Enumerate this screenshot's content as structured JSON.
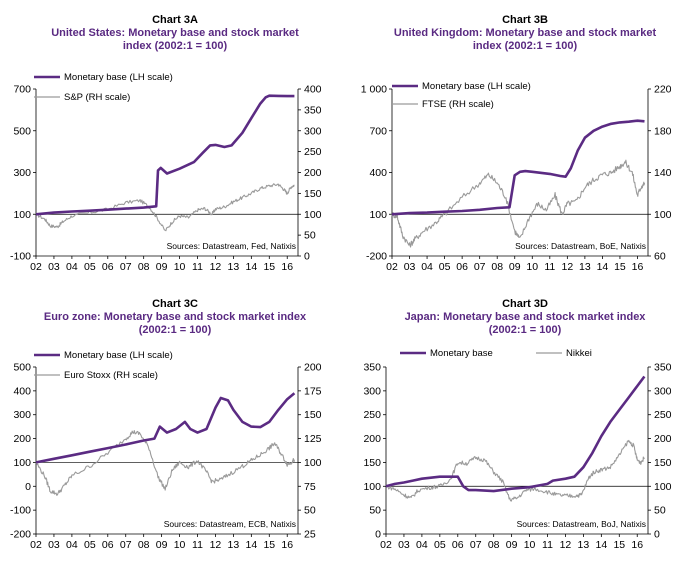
{
  "colors": {
    "monetary": "#5b2b83",
    "index": "#9a9a9a",
    "axis": "#000000",
    "title": "#5a2a82"
  },
  "chart_data": [
    {
      "type": "line",
      "chart_label": "Chart 3A",
      "title": "United States: Monetary base and stock market index (2002:1 = 100)",
      "title_lines": [
        "United States: Monetary base and stock market",
        "index (2002:1 = 100)"
      ],
      "source": "Sources: Datastream, Fed, Natixis",
      "x_ticks": [
        "02",
        "03",
        "04",
        "05",
        "06",
        "07",
        "08",
        "09",
        "10",
        "11",
        "12",
        "13",
        "14",
        "15",
        "16"
      ],
      "xlim": [
        2002,
        2016.6
      ],
      "left_axis": {
        "ylim": [
          -100,
          700
        ],
        "ticks": [
          "-100",
          "100",
          "300",
          "500",
          "700"
        ],
        "tick_values": [
          -100,
          100,
          300,
          500,
          700
        ]
      },
      "right_axis": {
        "ylim": [
          0,
          400
        ],
        "ticks": [
          "0",
          "50",
          "100",
          "150",
          "200",
          "250",
          "300",
          "350",
          "400"
        ],
        "tick_values": [
          0,
          50,
          100,
          150,
          200,
          250,
          300,
          350,
          400
        ]
      },
      "reference_line": 100,
      "legend_position": "top-left",
      "series": [
        {
          "name": "Monetary base (LH scale)",
          "axis": "left",
          "style": "thick",
          "x": [
            2002,
            2003,
            2004,
            2005,
            2006,
            2007,
            2008,
            2008.7,
            2008.8,
            2008.95,
            2009.3,
            2010,
            2010.8,
            2011.3,
            2011.7,
            2012,
            2012.5,
            2012.9,
            2013.5,
            2014,
            2014.5,
            2014.8,
            2015,
            2015.5,
            2016,
            2016.4
          ],
          "y": [
            100,
            108,
            113,
            117,
            122,
            127,
            132,
            138,
            310,
            322,
            295,
            318,
            350,
            395,
            430,
            432,
            422,
            430,
            490,
            560,
            630,
            660,
            668,
            667,
            666,
            666
          ]
        },
        {
          "name": "S&P (RH scale)",
          "axis": "right",
          "style": "thin",
          "x": [
            2002,
            2002.5,
            2002.8,
            2003.2,
            2003.5,
            2004,
            2005,
            2006,
            2007,
            2007.8,
            2008.3,
            2008.7,
            2009.2,
            2009.6,
            2010,
            2010.5,
            2011,
            2011.4,
            2011.8,
            2012,
            2012.5,
            2013,
            2013.5,
            2014,
            2014.5,
            2015,
            2015.5,
            2015.8,
            2016,
            2016.2,
            2016.4
          ],
          "y": [
            100,
            88,
            72,
            70,
            82,
            96,
            104,
            112,
            128,
            133,
            118,
            95,
            60,
            82,
            96,
            92,
            110,
            114,
            100,
            112,
            118,
            130,
            140,
            150,
            162,
            168,
            172,
            160,
            150,
            165,
            170
          ]
        }
      ]
    },
    {
      "type": "line",
      "chart_label": "Chart 3B",
      "title": "United Kingdom: Monetary base and stock market index (2002:1 = 100)",
      "title_lines": [
        "United Kingdom: Monetary base and stock market",
        "index (2002:1 = 100)"
      ],
      "source": "Sources: Datastream, BoE, Natixis",
      "x_ticks": [
        "02",
        "03",
        "04",
        "05",
        "06",
        "07",
        "08",
        "09",
        "10",
        "11",
        "12",
        "13",
        "14",
        "15",
        "16"
      ],
      "xlim": [
        2002,
        2016.6
      ],
      "left_axis": {
        "ylim": [
          -200,
          1000
        ],
        "ticks": [
          "-200",
          "100",
          "400",
          "700",
          "1 000"
        ],
        "tick_values": [
          -200,
          100,
          400,
          700,
          1000
        ]
      },
      "right_axis": {
        "ylim": [
          60,
          220
        ],
        "ticks": [
          "60",
          "100",
          "140",
          "180",
          "220"
        ],
        "tick_values": [
          60,
          100,
          140,
          180,
          220
        ]
      },
      "reference_line": 100,
      "legend_position": "top-left",
      "series": [
        {
          "name": "Monetary base (LH scale)",
          "axis": "left",
          "style": "thick",
          "x": [
            2002,
            2003,
            2004,
            2005,
            2006,
            2007,
            2008,
            2008.7,
            2009,
            2009.3,
            2009.6,
            2010,
            2011,
            2011.6,
            2011.9,
            2012.2,
            2012.6,
            2013,
            2013.5,
            2014,
            2014.5,
            2015,
            2015.5,
            2016,
            2016.4
          ],
          "y": [
            100,
            108,
            112,
            118,
            123,
            132,
            145,
            150,
            380,
            405,
            410,
            405,
            390,
            375,
            370,
            430,
            560,
            650,
            700,
            730,
            750,
            760,
            765,
            772,
            768
          ]
        },
        {
          "name": "FTSE (RH scale)",
          "axis": "right",
          "style": "thin",
          "x": [
            2002,
            2002.3,
            2002.6,
            2003,
            2003.3,
            2003.8,
            2004.5,
            2005,
            2006,
            2007,
            2007.5,
            2008,
            2008.5,
            2009,
            2009.3,
            2009.8,
            2010.3,
            2010.8,
            2011.3,
            2011.7,
            2012,
            2012.5,
            2013,
            2013.5,
            2014,
            2014.5,
            2015,
            2015.3,
            2015.7,
            2016,
            2016.2,
            2016.4
          ],
          "y": [
            100,
            98,
            80,
            70,
            76,
            84,
            92,
            100,
            116,
            130,
            138,
            130,
            116,
            84,
            76,
            96,
            110,
            104,
            118,
            100,
            110,
            112,
            126,
            133,
            138,
            140,
            146,
            150,
            140,
            118,
            126,
            130
          ]
        }
      ]
    },
    {
      "type": "line",
      "chart_label": "Chart 3C",
      "title": "Euro zone: Monetary base and stock market index (2002:1 = 100)",
      "title_lines": [
        "Euro zone: Monetary base and stock market index",
        "(2002:1 = 100)"
      ],
      "source": "Sources: Datastream, ECB, Natixis",
      "x_ticks": [
        "02",
        "03",
        "04",
        "05",
        "06",
        "07",
        "08",
        "09",
        "10",
        "11",
        "12",
        "13",
        "14",
        "15",
        "16"
      ],
      "xlim": [
        2002,
        2016.6
      ],
      "left_axis": {
        "ylim": [
          -200,
          500
        ],
        "ticks": [
          "-200",
          "-100",
          "0",
          "100",
          "200",
          "300",
          "400",
          "500"
        ],
        "tick_values": [
          -200,
          -100,
          0,
          100,
          200,
          300,
          400,
          500
        ]
      },
      "right_axis": {
        "ylim": [
          25,
          200
        ],
        "ticks": [
          "25",
          "50",
          "75",
          "100",
          "125",
          "150",
          "175",
          "200"
        ],
        "tick_values": [
          25,
          50,
          75,
          100,
          125,
          150,
          175,
          200
        ]
      },
      "reference_line": 100,
      "legend_position": "top-left",
      "series": [
        {
          "name": "Monetary base (LH scale)",
          "axis": "left",
          "style": "thick",
          "x": [
            2002,
            2003,
            2004,
            2005,
            2006,
            2007,
            2008,
            2008.6,
            2008.9,
            2009.3,
            2009.8,
            2010.3,
            2010.6,
            2011,
            2011.5,
            2012,
            2012.3,
            2012.7,
            2013,
            2013.5,
            2014,
            2014.5,
            2015,
            2015.5,
            2016,
            2016.4
          ],
          "y": [
            100,
            115,
            130,
            145,
            160,
            175,
            192,
            200,
            250,
            225,
            240,
            270,
            240,
            225,
            240,
            330,
            370,
            360,
            320,
            270,
            250,
            248,
            270,
            320,
            365,
            390
          ]
        },
        {
          "name": "Euro Stoxx (RH scale)",
          "axis": "right",
          "style": "thin",
          "x": [
            2002,
            2002.5,
            2002.8,
            2003.2,
            2003.6,
            2004,
            2005,
            2006,
            2007,
            2007.4,
            2007.8,
            2008.3,
            2008.8,
            2009.2,
            2009.6,
            2010,
            2010.5,
            2011,
            2011.5,
            2011.8,
            2012.3,
            2012.8,
            2013.5,
            2014,
            2014.5,
            2015,
            2015.3,
            2015.7,
            2016,
            2016.2,
            2016.4
          ],
          "y": [
            100,
            85,
            70,
            67,
            76,
            86,
            96,
            110,
            125,
            132,
            130,
            115,
            85,
            72,
            92,
            100,
            95,
            102,
            90,
            80,
            82,
            88,
            96,
            102,
            108,
            115,
            120,
            108,
            98,
            100,
            103
          ]
        }
      ]
    },
    {
      "type": "line",
      "chart_label": "Chart 3D",
      "title": "Japan: Monetary base and stock market index (2002:1 = 100)",
      "title_lines": [
        "Japan: Monetary base and stock market index",
        "(2002:1 = 100)"
      ],
      "source": "Sources: Datastream, BoJ, Natixis",
      "x_ticks": [
        "02",
        "03",
        "04",
        "05",
        "06",
        "07",
        "08",
        "09",
        "10",
        "11",
        "12",
        "13",
        "14",
        "15",
        "16"
      ],
      "xlim": [
        2002,
        2016.6
      ],
      "left_axis": {
        "ylim": [
          0,
          350
        ],
        "ticks": [
          "0",
          "50",
          "100",
          "150",
          "200",
          "250",
          "300",
          "350"
        ],
        "tick_values": [
          0,
          50,
          100,
          150,
          200,
          250,
          300,
          350
        ]
      },
      "right_axis": {
        "ylim": [
          0,
          350
        ],
        "ticks": [
          "0",
          "50",
          "100",
          "150",
          "200",
          "250",
          "300",
          "350"
        ],
        "tick_values": [
          0,
          50,
          100,
          150,
          200,
          250,
          300,
          350
        ]
      },
      "reference_line": 100,
      "legend_position": "top",
      "series": [
        {
          "name": "Monetary base",
          "axis": "left",
          "style": "thick",
          "x": [
            2002,
            2002.5,
            2003,
            2003.5,
            2004,
            2004.5,
            2005,
            2005.5,
            2006,
            2006.3,
            2006.6,
            2007,
            2008,
            2009,
            2010,
            2011,
            2011.3,
            2012,
            2012.5,
            2013,
            2013.5,
            2014,
            2014.5,
            2015,
            2015.5,
            2016,
            2016.4
          ],
          "y": [
            100,
            105,
            108,
            112,
            116,
            118,
            120,
            120,
            120,
            100,
            92,
            92,
            90,
            95,
            98,
            105,
            112,
            116,
            120,
            140,
            170,
            205,
            235,
            260,
            285,
            310,
            330
          ]
        },
        {
          "name": "Nikkei",
          "axis": "right",
          "style": "thin",
          "x": [
            2002,
            2002.5,
            2003,
            2003.4,
            2003.8,
            2004.5,
            2005,
            2005.6,
            2006,
            2006.5,
            2007,
            2007.5,
            2008,
            2008.5,
            2008.9,
            2009.3,
            2009.8,
            2010.3,
            2011,
            2011.5,
            2012,
            2012.5,
            2012.9,
            2013.3,
            2013.6,
            2014,
            2014.5,
            2015,
            2015.5,
            2015.8,
            2016,
            2016.2,
            2016.4
          ],
          "y": [
            100,
            94,
            82,
            75,
            92,
            98,
            100,
            115,
            150,
            148,
            160,
            155,
            130,
            110,
            72,
            75,
            92,
            95,
            88,
            82,
            80,
            80,
            82,
            118,
            130,
            135,
            140,
            165,
            195,
            185,
            155,
            150,
            160
          ]
        }
      ]
    }
  ]
}
